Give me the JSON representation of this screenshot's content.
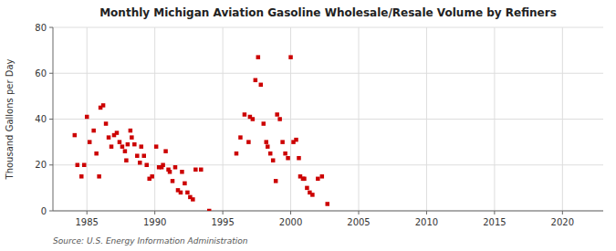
{
  "chart_data": {
    "type": "scatter",
    "title": "Monthly Michigan Aviation Gasoline Wholesale/Resale Volume by Refiners",
    "ylabel": "Thousand Gallons per Day",
    "source": "Source: U.S. Energy Information Administration",
    "color": "#cc0000",
    "marker": "square",
    "grid": true,
    "xlim": [
      1982.5,
      2023
    ],
    "ylim": [
      0,
      80
    ],
    "xticks": [
      1985,
      1990,
      1995,
      2000,
      2005,
      2010,
      2015,
      2020
    ],
    "yticks": [
      0,
      20,
      40,
      60,
      80
    ],
    "x": [
      1984.1,
      1984.3,
      1984.6,
      1984.8,
      1985.0,
      1985.2,
      1985.5,
      1985.7,
      1985.9,
      1986.0,
      1986.2,
      1986.4,
      1986.6,
      1986.8,
      1987.0,
      1987.2,
      1987.4,
      1987.6,
      1987.8,
      1987.9,
      1988.0,
      1988.2,
      1988.3,
      1988.5,
      1988.7,
      1988.9,
      1989.0,
      1989.2,
      1989.4,
      1989.6,
      1989.8,
      1990.1,
      1990.3,
      1990.5,
      1990.6,
      1990.8,
      1991.0,
      1991.1,
      1991.3,
      1991.5,
      1991.7,
      1991.9,
      1992.0,
      1992.2,
      1992.4,
      1992.6,
      1992.8,
      1993.0,
      1993.4,
      1994.0,
      1996.0,
      1996.3,
      1996.6,
      1996.9,
      1997.0,
      1997.2,
      1997.4,
      1997.6,
      1997.8,
      1998.0,
      1998.2,
      1998.3,
      1998.5,
      1998.7,
      1998.9,
      1999.0,
      1999.2,
      1999.4,
      1999.6,
      1999.8,
      2000.0,
      2000.2,
      2000.4,
      2000.6,
      2000.7,
      2000.9,
      2001.0,
      2001.2,
      2001.4,
      2001.6,
      2002.0,
      2002.3,
      2002.7
    ],
    "values": [
      33,
      20,
      15,
      20,
      41,
      30,
      35,
      25,
      15,
      45,
      46,
      38,
      32,
      28,
      33,
      34,
      30,
      28,
      26,
      22,
      29,
      35,
      32,
      29,
      24,
      21,
      28,
      24,
      20,
      14,
      15,
      28,
      19,
      19,
      20,
      26,
      18,
      17,
      13,
      19,
      9,
      8,
      17,
      12,
      8,
      6,
      5,
      18,
      18,
      0,
      25,
      32,
      42,
      30,
      41,
      40,
      57,
      67,
      55,
      38,
      30,
      28,
      25,
      22,
      13,
      42,
      40,
      30,
      25,
      23,
      67,
      30,
      31,
      23,
      15,
      14,
      14,
      10,
      8,
      7,
      14,
      15,
      3
    ]
  }
}
